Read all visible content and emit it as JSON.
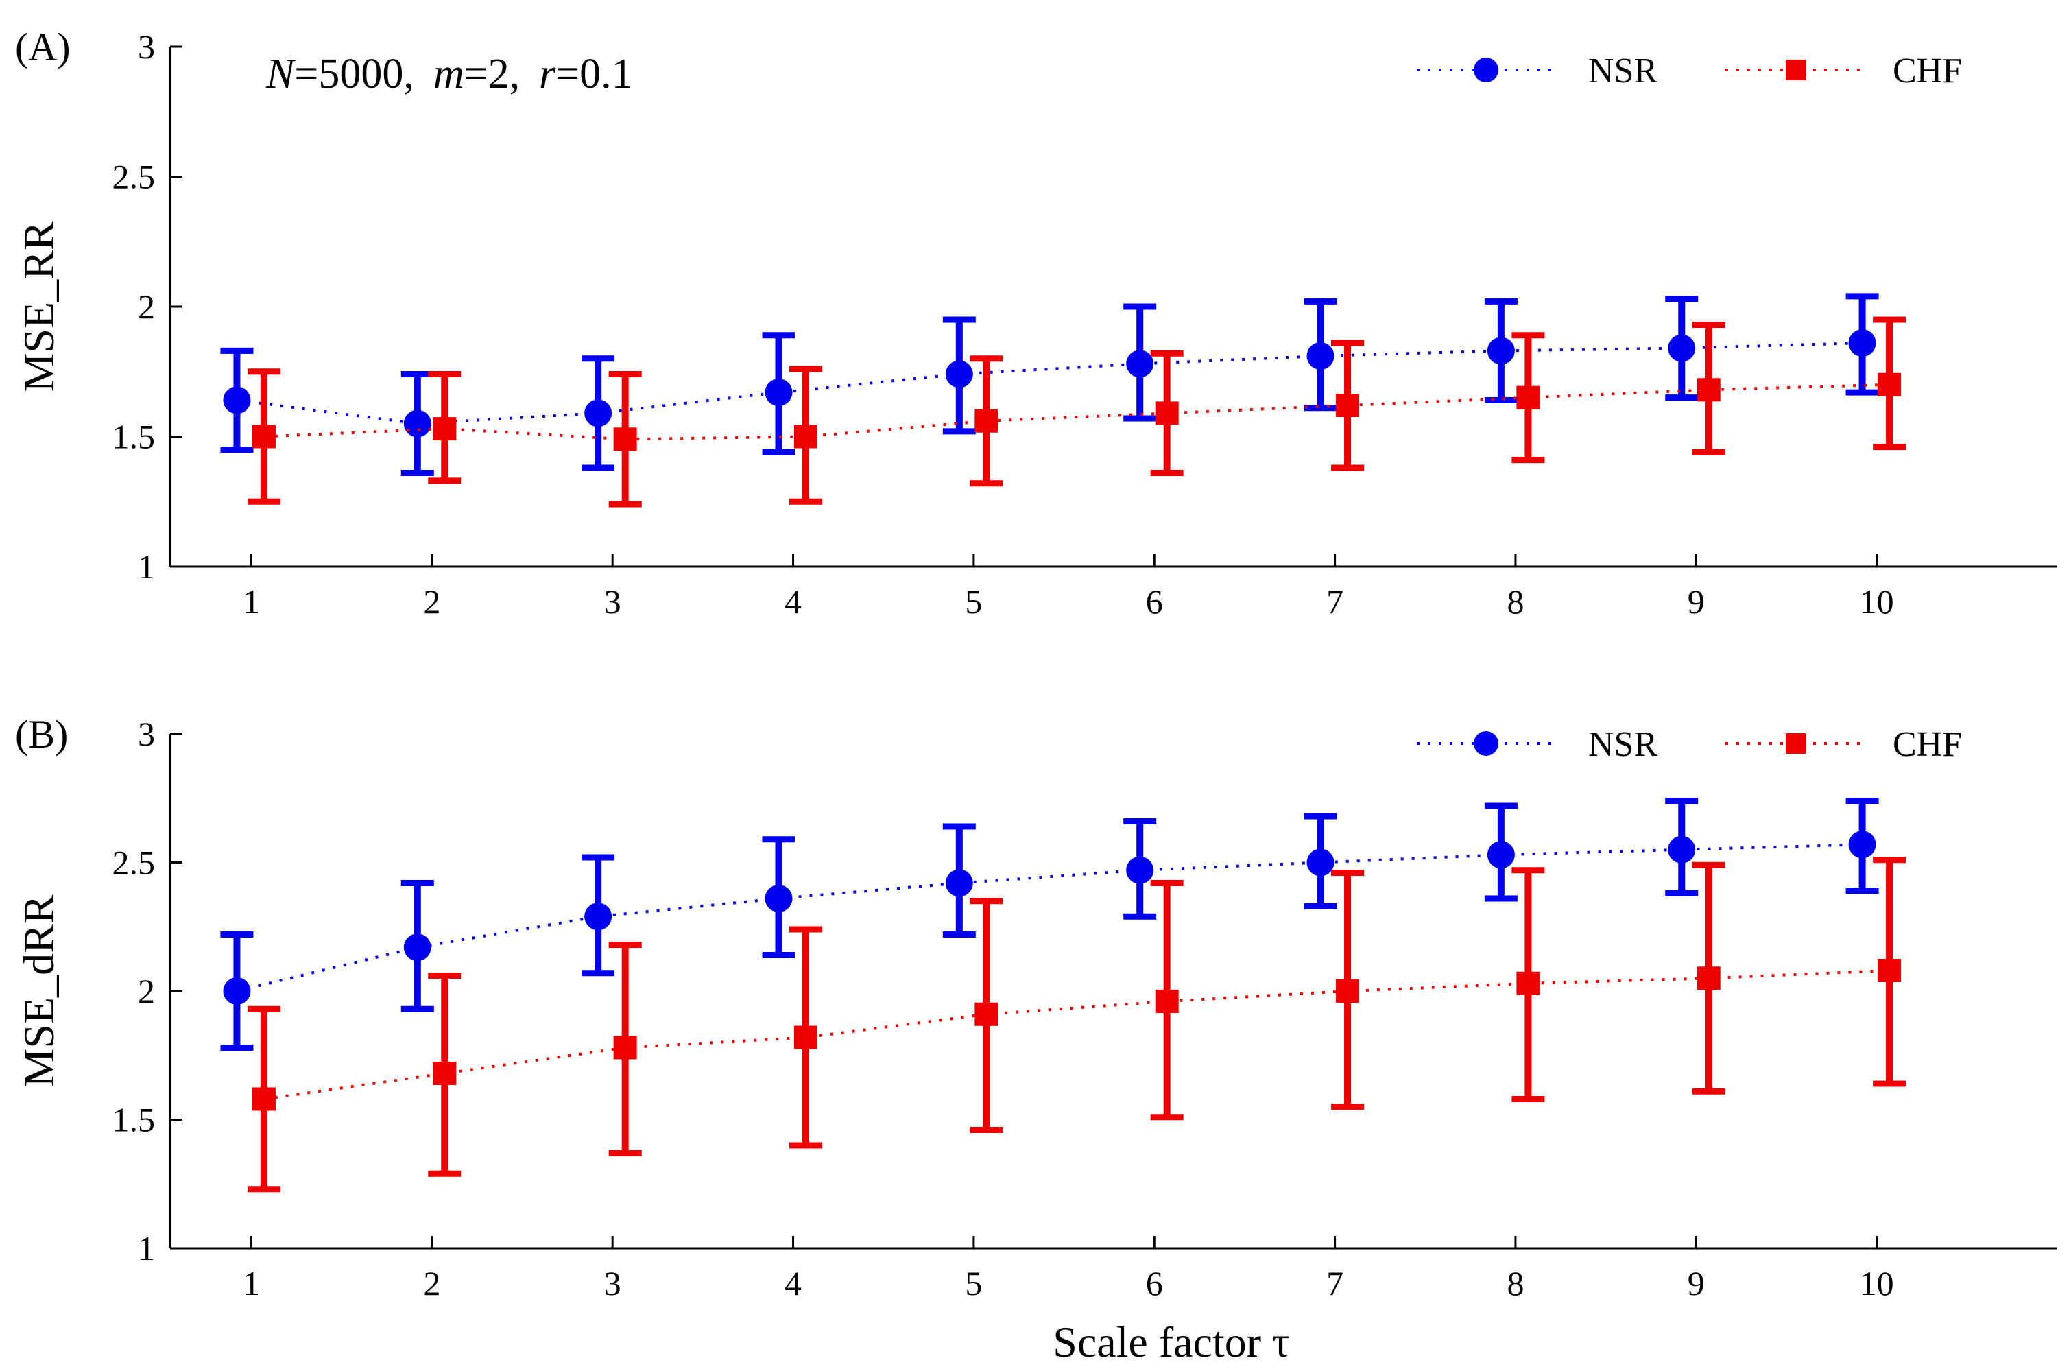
{
  "chart_data": [
    {
      "type": "line",
      "panel_label": "(A)",
      "annotation": {
        "N_var": "N",
        "N_val": "=5000,",
        "m_var": "m",
        "m_val": "=2,",
        "r_var": "r",
        "r_val": "=0.1"
      },
      "xlabel": "",
      "ylabel": "MSE_RR",
      "x": [
        1,
        2,
        3,
        4,
        5,
        6,
        7,
        8,
        9,
        10
      ],
      "x_tick_labels": [
        "1",
        "2",
        "3",
        "4",
        "5",
        "6",
        "7",
        "8",
        "9",
        "10"
      ],
      "xlim": [
        0.55,
        11.0
      ],
      "ylim": [
        1,
        3
      ],
      "y_ticks": [
        1,
        1.5,
        2,
        2.5,
        3
      ],
      "y_tick_labels": [
        "1",
        "1.5",
        "2",
        "2.5",
        "3"
      ],
      "legend_position": "top-right",
      "series": [
        {
          "name": "NSR",
          "color": "#0000ee",
          "marker": "circle",
          "offset": -0.08,
          "values": [
            1.64,
            1.55,
            1.59,
            1.67,
            1.74,
            1.78,
            1.81,
            1.83,
            1.84,
            1.86
          ],
          "lower": [
            1.45,
            1.36,
            1.38,
            1.44,
            1.52,
            1.57,
            1.61,
            1.64,
            1.65,
            1.67
          ],
          "upper": [
            1.83,
            1.74,
            1.8,
            1.89,
            1.95,
            2.0,
            2.02,
            2.02,
            2.03,
            2.04
          ]
        },
        {
          "name": "CHF",
          "color": "#ee0000",
          "marker": "square",
          "offset": 0.07,
          "values": [
            1.5,
            1.53,
            1.49,
            1.5,
            1.56,
            1.59,
            1.62,
            1.65,
            1.68,
            1.7
          ],
          "lower": [
            1.25,
            1.33,
            1.24,
            1.25,
            1.32,
            1.36,
            1.38,
            1.41,
            1.44,
            1.46
          ],
          "upper": [
            1.75,
            1.74,
            1.74,
            1.76,
            1.8,
            1.82,
            1.86,
            1.89,
            1.93,
            1.95
          ]
        }
      ]
    },
    {
      "type": "line",
      "panel_label": "(B)",
      "xlabel": "Scale factor τ",
      "ylabel": "MSE_dRR",
      "x": [
        1,
        2,
        3,
        4,
        5,
        6,
        7,
        8,
        9,
        10
      ],
      "x_tick_labels": [
        "1",
        "2",
        "3",
        "4",
        "5",
        "6",
        "7",
        "8",
        "9",
        "10"
      ],
      "xlim": [
        0.55,
        11.0
      ],
      "ylim": [
        1,
        3
      ],
      "y_ticks": [
        1,
        1.5,
        2,
        2.5,
        3
      ],
      "y_tick_labels": [
        "1",
        "1.5",
        "2",
        "2.5",
        "3"
      ],
      "legend_position": "top-right",
      "series": [
        {
          "name": "NSR",
          "color": "#0000ee",
          "marker": "circle",
          "offset": -0.08,
          "values": [
            2.0,
            2.17,
            2.29,
            2.36,
            2.42,
            2.47,
            2.5,
            2.53,
            2.55,
            2.57
          ],
          "lower": [
            1.78,
            1.93,
            2.07,
            2.14,
            2.22,
            2.29,
            2.33,
            2.36,
            2.38,
            2.39
          ],
          "upper": [
            2.22,
            2.42,
            2.52,
            2.59,
            2.64,
            2.66,
            2.68,
            2.72,
            2.74,
            2.74
          ]
        },
        {
          "name": "CHF",
          "color": "#ee0000",
          "marker": "square",
          "offset": 0.07,
          "values": [
            1.58,
            1.68,
            1.78,
            1.82,
            1.91,
            1.96,
            2.0,
            2.03,
            2.05,
            2.08
          ],
          "lower": [
            1.23,
            1.29,
            1.37,
            1.4,
            1.46,
            1.51,
            1.55,
            1.58,
            1.61,
            1.64
          ],
          "upper": [
            1.93,
            2.06,
            2.18,
            2.24,
            2.35,
            2.42,
            2.46,
            2.47,
            2.49,
            2.51
          ]
        }
      ]
    }
  ]
}
